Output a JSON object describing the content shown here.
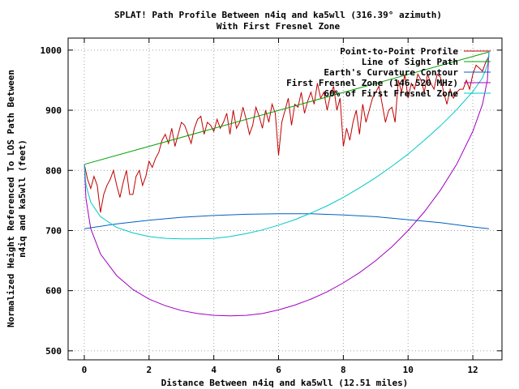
{
  "chart_data": {
    "type": "line",
    "title": "SPLAT! Path Profile Between n4iq and ka5wll (316.39° azimuth)",
    "subtitle": "With First Fresnel Zone",
    "xlabel": "Distance Between n4iq and ka5wll (12.51 miles)",
    "ylabel_line1": "Normalized Height Referenced To LOS Path Between",
    "ylabel_line2": "n4iq and ka5wll (feet)",
    "xlim": [
      -0.5,
      12.9
    ],
    "ylim": [
      485,
      1020
    ],
    "x_ticks": [
      0,
      2,
      4,
      6,
      8,
      10,
      12
    ],
    "y_ticks": [
      500,
      600,
      700,
      800,
      900,
      1000
    ],
    "grid": true,
    "legend_position": "top-right",
    "series": [
      {
        "name": "Point-to-Point Profile",
        "color": "#c00000",
        "x": [
          0.0,
          0.1,
          0.2,
          0.3,
          0.4,
          0.5,
          0.6,
          0.7,
          0.8,
          0.9,
          1.0,
          1.1,
          1.2,
          1.3,
          1.4,
          1.5,
          1.6,
          1.7,
          1.8,
          1.9,
          2.0,
          2.1,
          2.2,
          2.3,
          2.4,
          2.5,
          2.6,
          2.7,
          2.8,
          2.9,
          3.0,
          3.1,
          3.2,
          3.3,
          3.4,
          3.5,
          3.6,
          3.7,
          3.8,
          3.9,
          4.0,
          4.1,
          4.2,
          4.3,
          4.4,
          4.5,
          4.6,
          4.7,
          4.8,
          4.9,
          5.0,
          5.1,
          5.2,
          5.3,
          5.4,
          5.5,
          5.6,
          5.7,
          5.8,
          5.9,
          6.0,
          6.1,
          6.2,
          6.3,
          6.4,
          6.5,
          6.6,
          6.7,
          6.8,
          6.9,
          7.0,
          7.1,
          7.2,
          7.3,
          7.4,
          7.5,
          7.6,
          7.7,
          7.8,
          7.9,
          8.0,
          8.1,
          8.2,
          8.3,
          8.4,
          8.5,
          8.6,
          8.7,
          8.8,
          8.9,
          9.0,
          9.1,
          9.2,
          9.3,
          9.4,
          9.5,
          9.6,
          9.7,
          9.8,
          9.9,
          10.0,
          10.1,
          10.2,
          10.3,
          10.4,
          10.5,
          10.6,
          10.7,
          10.8,
          10.9,
          11.0,
          11.1,
          11.2,
          11.3,
          11.4,
          11.5,
          11.6,
          11.7,
          11.8,
          11.9,
          12.0,
          12.1,
          12.2,
          12.3,
          12.4,
          12.5
        ],
        "y": [
          810,
          785,
          770,
          790,
          775,
          730,
          760,
          775,
          785,
          800,
          775,
          755,
          780,
          800,
          760,
          760,
          790,
          800,
          775,
          790,
          815,
          805,
          820,
          830,
          850,
          860,
          845,
          870,
          840,
          860,
          880,
          875,
          860,
          845,
          870,
          885,
          890,
          860,
          880,
          875,
          865,
          885,
          870,
          880,
          895,
          860,
          900,
          870,
          880,
          905,
          885,
          860,
          875,
          905,
          890,
          870,
          900,
          880,
          910,
          895,
          825,
          880,
          900,
          920,
          875,
          910,
          905,
          930,
          895,
          915,
          930,
          910,
          945,
          920,
          930,
          900,
          925,
          940,
          900,
          920,
          840,
          870,
          850,
          880,
          900,
          860,
          910,
          880,
          900,
          920,
          930,
          940,
          910,
          880,
          900,
          905,
          880,
          950,
          930,
          960,
          920,
          945,
          935,
          960,
          950,
          930,
          960,
          945,
          935,
          960,
          955,
          930,
          910,
          935,
          920,
          930,
          935,
          935,
          950,
          935,
          960,
          975,
          970,
          965,
          980,
          990
        ]
      },
      {
        "name": "Line of Sight Path",
        "color": "#00a000",
        "x": [
          0.0,
          12.5
        ],
        "y": [
          810,
          997
        ]
      },
      {
        "name": "Earth's Curvature Contour",
        "color": "#0060c0",
        "x": [
          0.0,
          1.0,
          2.0,
          3.0,
          4.0,
          5.0,
          6.0,
          7.0,
          8.0,
          9.0,
          10.0,
          11.0,
          12.0,
          12.5
        ],
        "y": [
          703,
          711,
          717,
          722,
          725,
          727,
          728,
          728,
          726,
          723,
          718,
          713,
          706,
          703
        ]
      },
      {
        "name": "First Fresnel Zone (146.520 MHz)",
        "color": "#a000c0",
        "x": [
          0.0,
          0.05,
          0.2,
          0.5,
          1.0,
          1.5,
          2.0,
          2.5,
          3.0,
          3.5,
          4.0,
          4.5,
          5.0,
          5.5,
          6.0,
          6.5,
          7.0,
          7.5,
          8.0,
          8.5,
          9.0,
          9.5,
          10.0,
          10.5,
          11.0,
          11.5,
          12.0,
          12.3,
          12.45,
          12.5
        ],
        "y": [
          810,
          753,
          703,
          661,
          625,
          602,
          586,
          575,
          567,
          562,
          559,
          558,
          559,
          562,
          568,
          576,
          586,
          598,
          613,
          630,
          650,
          673,
          700,
          731,
          767,
          810,
          865,
          910,
          950,
          997
        ]
      },
      {
        "name": "60% of First Fresnel Zone",
        "color": "#00c8c8",
        "x": [
          0.0,
          0.05,
          0.2,
          0.5,
          1.0,
          1.5,
          2.0,
          2.5,
          3.0,
          3.5,
          4.0,
          4.5,
          5.0,
          5.5,
          6.0,
          6.5,
          7.0,
          7.5,
          8.0,
          8.5,
          9.0,
          9.5,
          10.0,
          10.5,
          11.0,
          11.5,
          12.0,
          12.3,
          12.45,
          12.5
        ],
        "y": [
          810,
          776,
          747,
          723,
          705,
          696,
          690,
          687,
          686,
          686,
          687,
          690,
          695,
          701,
          709,
          718,
          729,
          741,
          755,
          771,
          788,
          807,
          827,
          850,
          874,
          901,
          931,
          954,
          975,
          997
        ]
      }
    ]
  }
}
